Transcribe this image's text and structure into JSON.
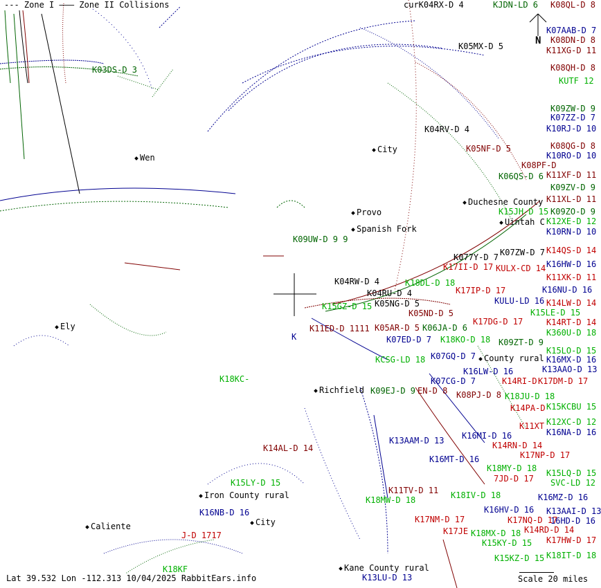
{
  "legend": {
    "zone1": "--- Zone I",
    "zone2_line": "———",
    "zone2": "Zone II Collisions"
  },
  "status": {
    "text": "Lat 39.532 Lon -112.313 10/04/2025 RabbitEars.info"
  },
  "scale": {
    "label": "Scale 20 miles"
  },
  "north": {
    "label": "N"
  },
  "colors": {
    "black": "#000000",
    "navy": "#000090",
    "darkred": "#800000",
    "red": "#c00000",
    "green": "#006400",
    "lightgreen": "#00b000"
  },
  "cities": [
    {
      "name": "Wen"
    },
    {
      "name": "Provo"
    },
    {
      "name": "Spanish Fork"
    },
    {
      "name": "Ely"
    },
    {
      "name": "Duchesne County"
    },
    {
      "name": "Uintah C"
    },
    {
      "name": "Richfield"
    },
    {
      "name": "Iron County rural"
    },
    {
      "name": "Caliente"
    },
    {
      "name": "Kane County rural"
    },
    {
      "name": "City"
    },
    {
      "name": "City"
    },
    {
      "name": "County rural"
    }
  ],
  "stations": [
    {
      "text": "K03DS-D 3",
      "color": "green"
    },
    {
      "text": "curK04RX-D 4",
      "color": "black"
    },
    {
      "text": "KJDN-LD 6",
      "color": "green"
    },
    {
      "text": "K08QL-D 8",
      "color": "darkred"
    },
    {
      "text": "K07AAB-D 7",
      "color": "navy"
    },
    {
      "text": "K08DN-D 8",
      "color": "darkred"
    },
    {
      "text": "K11XG-D 11",
      "color": "darkred"
    },
    {
      "text": "K05MX-D 5",
      "color": "black"
    },
    {
      "text": "K08QH-D 8",
      "color": "darkred"
    },
    {
      "text": "KUTF 12",
      "color": "lightgreen"
    },
    {
      "text": "K09ZW-D 9",
      "color": "green"
    },
    {
      "text": "K07ZZ-D 7",
      "color": "navy"
    },
    {
      "text": "K10RJ-D 10",
      "color": "navy"
    },
    {
      "text": "K04RV-D 4",
      "color": "black"
    },
    {
      "text": "K05NF-D 5",
      "color": "darkred"
    },
    {
      "text": "K08QG-D 8",
      "color": "darkred"
    },
    {
      "text": "K10RO-D 10",
      "color": "navy"
    },
    {
      "text": "K08PF-D",
      "color": "darkred"
    },
    {
      "text": "K06QS-D 6",
      "color": "green"
    },
    {
      "text": "K11XF-D 11",
      "color": "darkred"
    },
    {
      "text": "K09ZV-D 9",
      "color": "green"
    },
    {
      "text": "K11XL-D 11",
      "color": "darkred"
    },
    {
      "text": "K15JH-D 15",
      "color": "lightgreen"
    },
    {
      "text": "K09ZO-D 9",
      "color": "green"
    },
    {
      "text": "K12XE-D 12",
      "color": "lightgreen"
    },
    {
      "text": "K10RN-D 10",
      "color": "navy"
    },
    {
      "text": "K14QS-D 14",
      "color": "red"
    },
    {
      "text": "K07ZW-D 7",
      "color": "black"
    },
    {
      "text": "K077Y-D 7",
      "color": "black"
    },
    {
      "text": "K17II-D 17",
      "color": "red"
    },
    {
      "text": "KULX-CD 14",
      "color": "red"
    },
    {
      "text": "K16HW-D 16",
      "color": "navy"
    },
    {
      "text": "K11XK-D 11",
      "color": "red"
    },
    {
      "text": "K09UW-D 9 9",
      "color": "green"
    },
    {
      "text": "K04RW-D 4",
      "color": "black"
    },
    {
      "text": "K18DL-D 18",
      "color": "lightgreen"
    },
    {
      "text": "K04RU-D 4",
      "color": "black"
    },
    {
      "text": "K17IP-D 17",
      "color": "red"
    },
    {
      "text": "K16NU-D 16",
      "color": "navy"
    },
    {
      "text": "KULU-LD 16",
      "color": "navy"
    },
    {
      "text": "K14LW-D 14",
      "color": "red"
    },
    {
      "text": "K05NG-D 5",
      "color": "black"
    },
    {
      "text": "K15GZ-D 15",
      "color": "lightgreen"
    },
    {
      "text": "K15LE-D 15",
      "color": "lightgreen"
    },
    {
      "text": "K05ND-D 5",
      "color": "darkred"
    },
    {
      "text": "K14RT-D 14",
      "color": "red"
    },
    {
      "text": "K17DG-D 17",
      "color": "red"
    },
    {
      "text": "K11ED-D 1111",
      "color": "darkred"
    },
    {
      "text": "K05AR-D 5",
      "color": "darkred"
    },
    {
      "text": "K06JA-D 6",
      "color": "green"
    },
    {
      "text": "K360U-D 18",
      "color": "lightgreen"
    },
    {
      "text": "K07ED-D 7",
      "color": "navy"
    },
    {
      "text": "K18KO-D 18",
      "color": "lightgreen"
    },
    {
      "text": "K09ZT-D 9",
      "color": "green"
    },
    {
      "text": "K15LO-D 15",
      "color": "lightgreen"
    },
    {
      "text": "K07GQ-D 7",
      "color": "navy"
    },
    {
      "text": "KCSG-LD 18",
      "color": "lightgreen"
    },
    {
      "text": "K16MX-D 16",
      "color": "navy"
    },
    {
      "text": "K13AAO-D 13",
      "color": "navy"
    },
    {
      "text": "K16LW-D 16",
      "color": "navy"
    },
    {
      "text": "K07CG-D 7",
      "color": "navy"
    },
    {
      "text": "K14RI-D",
      "color": "red"
    },
    {
      "text": "K17DM-D 17",
      "color": "red"
    },
    {
      "text": "K18KC-",
      "color": "lightgreen"
    },
    {
      "text": "K09EJ-D 9",
      "color": "green"
    },
    {
      "text": "EN-D 8",
      "color": "darkred"
    },
    {
      "text": "K08PJ-D 8",
      "color": "darkred"
    },
    {
      "text": "K18JU-D 18",
      "color": "lightgreen"
    },
    {
      "text": "K14PA-D",
      "color": "red"
    },
    {
      "text": "K15KCBU 15",
      "color": "lightgreen"
    },
    {
      "text": "K12XC-D 12",
      "color": "lightgreen"
    },
    {
      "text": "K11XT",
      "color": "red"
    },
    {
      "text": "K16NA-D 16",
      "color": "navy"
    },
    {
      "text": "K16MI-D 16",
      "color": "navy"
    },
    {
      "text": "K13AAM-D 13",
      "color": "navy"
    },
    {
      "text": "K14RN-D 14",
      "color": "red"
    },
    {
      "text": "K14AL-D 14",
      "color": "darkred"
    },
    {
      "text": "K17NP-D 17",
      "color": "red"
    },
    {
      "text": "K16MT-D 16",
      "color": "navy"
    },
    {
      "text": "K18MY-D 18",
      "color": "lightgreen"
    },
    {
      "text": "K15LQ-D 15",
      "color": "lightgreen"
    },
    {
      "text": "7JD-D 17",
      "color": "red"
    },
    {
      "text": "SVC-LD 12",
      "color": "lightgreen"
    },
    {
      "text": "K15LY-D 15",
      "color": "lightgreen"
    },
    {
      "text": "K11TV-D 11",
      "color": "darkred"
    },
    {
      "text": "K18MW-D 18",
      "color": "lightgreen"
    },
    {
      "text": "K18IV-D 18",
      "color": "lightgreen"
    },
    {
      "text": "K16MZ-D 16",
      "color": "navy"
    },
    {
      "text": "K16HV-D 16",
      "color": "navy"
    },
    {
      "text": "K13AAI-D 13",
      "color": "navy"
    },
    {
      "text": "K17NQ-D 17",
      "color": "red"
    },
    {
      "text": "K17NM-D 17",
      "color": "red"
    },
    {
      "text": "16HD-D 16",
      "color": "navy"
    },
    {
      "text": "K14RD-D 14",
      "color": "red"
    },
    {
      "text": "K17JE",
      "color": "red"
    },
    {
      "text": "K18MX-D 18",
      "color": "lightgreen"
    },
    {
      "text": "K15KY-D 15",
      "color": "lightgreen"
    },
    {
      "text": "K17HW-D 17",
      "color": "red"
    },
    {
      "text": "K15KZ-D 15",
      "color": "lightgreen"
    },
    {
      "text": "K18IT-D 18",
      "color": "lightgreen"
    },
    {
      "text": "K18KF",
      "color": "lightgreen"
    },
    {
      "text": "K13LU-D 13",
      "color": "navy"
    },
    {
      "text": "K16NB-D 16",
      "color": "navy"
    },
    {
      "text": "J-D 1717",
      "color": "red"
    },
    {
      "text": "K",
      "color": "navy"
    }
  ]
}
